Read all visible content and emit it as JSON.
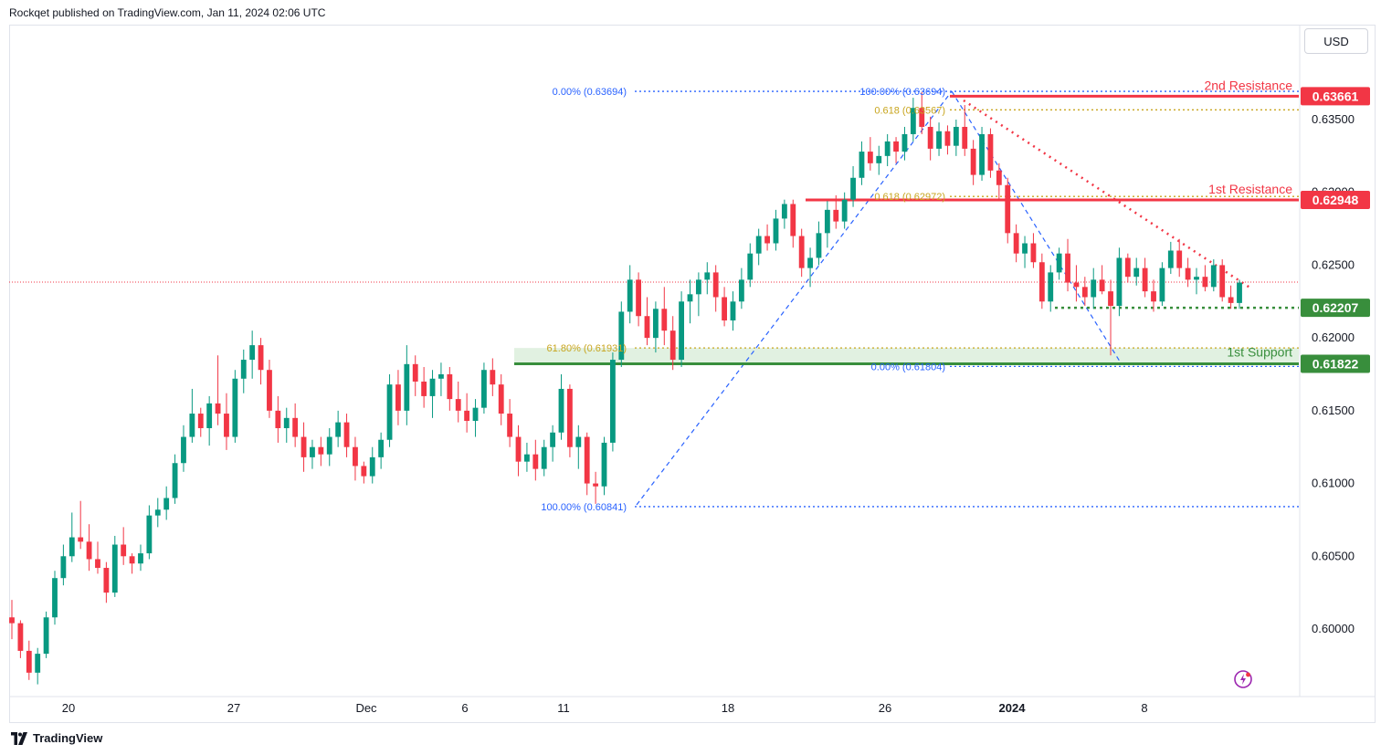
{
  "header": {
    "publisher": "Rockqet published on TradingView.com, Jan 11, 2024 02:06 UTC"
  },
  "toolbar": {
    "currency_label": "USD"
  },
  "footer": {
    "brand": "TradingView"
  },
  "colors": {
    "up": "#089981",
    "down": "#f23645",
    "resistance": "#f23645",
    "support": "#388e3c",
    "fib_blue": "#2962ff",
    "fib_gold": "#c8a51e"
  },
  "chart_data": {
    "type": "candlestick",
    "x_tick_labels": [
      "20",
      "27",
      "Dec",
      "6",
      "11",
      "18",
      "26",
      "2024",
      "8"
    ],
    "y_ticks": [
      "0.63500",
      "0.63000",
      "0.62500",
      "0.62000",
      "0.61500",
      "0.61000",
      "0.60500",
      "0.60000"
    ],
    "ylim": [
      0.5955,
      0.6425
    ],
    "price_labels": [
      {
        "value": 0.63661,
        "text": "0.63661",
        "kind": "resistance"
      },
      {
        "value": 0.62948,
        "text": "0.62948",
        "kind": "resistance"
      },
      {
        "value": 0.62207,
        "text": "0.62207",
        "kind": "support"
      },
      {
        "value": 0.61822,
        "text": "0.61822",
        "kind": "support"
      }
    ],
    "level_names": {
      "r2": "2nd Resistance",
      "r1": "1st Resistance",
      "s1": "1st Support"
    },
    "fib_labels": [
      {
        "text": "0.00% (0.63694)",
        "value": 0.63694
      },
      {
        "text": "100.00% (0.60841)",
        "value": 0.60841
      },
      {
        "text": "61.80% (0.61931)",
        "value": 0.61931
      },
      {
        "text": "100.00% (0.63694)",
        "value": 0.63694
      },
      {
        "text": "0.618 (0.63567)",
        "value": 0.63567
      },
      {
        "text": "0.618 (0.62972)",
        "value": 0.62972
      },
      {
        "text": "0.00% (0.61804)",
        "value": 0.61804
      }
    ],
    "candles": [
      [
        0.6008,
        0.602,
        0.5993,
        0.6004
      ],
      [
        0.6004,
        0.6006,
        0.598,
        0.5985
      ],
      [
        0.5985,
        0.5992,
        0.5965,
        0.597
      ],
      [
        0.597,
        0.5987,
        0.5962,
        0.5983
      ],
      [
        0.5983,
        0.6012,
        0.598,
        0.6008
      ],
      [
        0.6008,
        0.604,
        0.6003,
        0.6035
      ],
      [
        0.6035,
        0.6058,
        0.603,
        0.605
      ],
      [
        0.605,
        0.608,
        0.6046,
        0.6063
      ],
      [
        0.6063,
        0.6088,
        0.6055,
        0.606
      ],
      [
        0.606,
        0.6072,
        0.604,
        0.6048
      ],
      [
        0.6048,
        0.606,
        0.6038,
        0.6042
      ],
      [
        0.6042,
        0.6046,
        0.6018,
        0.6025
      ],
      [
        0.6025,
        0.6064,
        0.6022,
        0.6058
      ],
      [
        0.6058,
        0.607,
        0.6044,
        0.605
      ],
      [
        0.605,
        0.6052,
        0.6038,
        0.6045
      ],
      [
        0.6045,
        0.6058,
        0.604,
        0.6052
      ],
      [
        0.6052,
        0.6085,
        0.6048,
        0.6078
      ],
      [
        0.6078,
        0.609,
        0.607,
        0.6082
      ],
      [
        0.6082,
        0.6098,
        0.6075,
        0.609
      ],
      [
        0.609,
        0.612,
        0.6086,
        0.6114
      ],
      [
        0.6114,
        0.614,
        0.6108,
        0.6132
      ],
      [
        0.6132,
        0.6165,
        0.6128,
        0.6148
      ],
      [
        0.6148,
        0.6152,
        0.6132,
        0.6138
      ],
      [
        0.6138,
        0.616,
        0.6126,
        0.6155
      ],
      [
        0.6155,
        0.6188,
        0.614,
        0.6148
      ],
      [
        0.6148,
        0.6162,
        0.6123,
        0.6132
      ],
      [
        0.6132,
        0.6178,
        0.6128,
        0.6172
      ],
      [
        0.6172,
        0.6192,
        0.6162,
        0.6185
      ],
      [
        0.6185,
        0.6205,
        0.6172,
        0.6195
      ],
      [
        0.6195,
        0.62,
        0.6168,
        0.6178
      ],
      [
        0.6178,
        0.6185,
        0.6145,
        0.615
      ],
      [
        0.615,
        0.616,
        0.6128,
        0.6138
      ],
      [
        0.6138,
        0.6152,
        0.6128,
        0.6145
      ],
      [
        0.6145,
        0.6155,
        0.6125,
        0.6132
      ],
      [
        0.6132,
        0.6142,
        0.6108,
        0.6118
      ],
      [
        0.6118,
        0.613,
        0.611,
        0.6125
      ],
      [
        0.6125,
        0.6132,
        0.6112,
        0.612
      ],
      [
        0.612,
        0.6138,
        0.6112,
        0.6132
      ],
      [
        0.6132,
        0.615,
        0.6125,
        0.6142
      ],
      [
        0.6142,
        0.6148,
        0.6118,
        0.6125
      ],
      [
        0.6125,
        0.6132,
        0.6102,
        0.6112
      ],
      [
        0.6112,
        0.6115,
        0.61,
        0.6105
      ],
      [
        0.6105,
        0.6125,
        0.61,
        0.6118
      ],
      [
        0.6118,
        0.6135,
        0.611,
        0.613
      ],
      [
        0.613,
        0.6175,
        0.6125,
        0.6168
      ],
      [
        0.6168,
        0.6178,
        0.614,
        0.615
      ],
      [
        0.615,
        0.6195,
        0.614,
        0.6182
      ],
      [
        0.6182,
        0.6188,
        0.616,
        0.617
      ],
      [
        0.617,
        0.618,
        0.6152,
        0.616
      ],
      [
        0.616,
        0.6178,
        0.6145,
        0.6172
      ],
      [
        0.6172,
        0.6183,
        0.616,
        0.6175
      ],
      [
        0.6175,
        0.618,
        0.615,
        0.6158
      ],
      [
        0.6158,
        0.617,
        0.6142,
        0.615
      ],
      [
        0.615,
        0.6162,
        0.6135,
        0.6143
      ],
      [
        0.6143,
        0.6158,
        0.6132,
        0.6152
      ],
      [
        0.6152,
        0.6183,
        0.6148,
        0.6178
      ],
      [
        0.6178,
        0.6186,
        0.616,
        0.6168
      ],
      [
        0.6168,
        0.6175,
        0.614,
        0.6148
      ],
      [
        0.6148,
        0.6158,
        0.6125,
        0.6132
      ],
      [
        0.6132,
        0.614,
        0.6105,
        0.6115
      ],
      [
        0.6115,
        0.6128,
        0.6108,
        0.612
      ],
      [
        0.612,
        0.613,
        0.6102,
        0.611
      ],
      [
        0.611,
        0.613,
        0.6105,
        0.6125
      ],
      [
        0.6125,
        0.614,
        0.6115,
        0.6135
      ],
      [
        0.6135,
        0.6175,
        0.613,
        0.6165
      ],
      [
        0.6165,
        0.6168,
        0.6118,
        0.6125
      ],
      [
        0.6125,
        0.614,
        0.611,
        0.6132
      ],
      [
        0.6132,
        0.6135,
        0.6092,
        0.61
      ],
      [
        0.61,
        0.6108,
        0.6086,
        0.6098
      ],
      [
        0.6098,
        0.6132,
        0.6092,
        0.6128
      ],
      [
        0.6128,
        0.619,
        0.6122,
        0.6185
      ],
      [
        0.6185,
        0.6225,
        0.618,
        0.6218
      ],
      [
        0.6218,
        0.625,
        0.621,
        0.624
      ],
      [
        0.624,
        0.6245,
        0.6208,
        0.6215
      ],
      [
        0.6215,
        0.6228,
        0.6195,
        0.62
      ],
      [
        0.62,
        0.6225,
        0.619,
        0.622
      ],
      [
        0.622,
        0.6235,
        0.6195,
        0.6205
      ],
      [
        0.6205,
        0.6215,
        0.6178,
        0.6185
      ],
      [
        0.6185,
        0.6232,
        0.618,
        0.6225
      ],
      [
        0.6225,
        0.624,
        0.621,
        0.623
      ],
      [
        0.623,
        0.6245,
        0.6215,
        0.624
      ],
      [
        0.624,
        0.6252,
        0.623,
        0.6245
      ],
      [
        0.6245,
        0.625,
        0.6218,
        0.6228
      ],
      [
        0.6228,
        0.6235,
        0.6208,
        0.6212
      ],
      [
        0.6212,
        0.6232,
        0.6205,
        0.6225
      ],
      [
        0.6225,
        0.6248,
        0.622,
        0.624
      ],
      [
        0.624,
        0.6265,
        0.6235,
        0.6258
      ],
      [
        0.6258,
        0.6275,
        0.625,
        0.627
      ],
      [
        0.627,
        0.6278,
        0.626,
        0.6265
      ],
      [
        0.6265,
        0.6288,
        0.626,
        0.6282
      ],
      [
        0.6282,
        0.6295,
        0.6275,
        0.6292
      ],
      [
        0.6292,
        0.6295,
        0.6262,
        0.627
      ],
      [
        0.627,
        0.6275,
        0.6242,
        0.6248
      ],
      [
        0.6248,
        0.6262,
        0.6235,
        0.6255
      ],
      [
        0.6255,
        0.628,
        0.625,
        0.6272
      ],
      [
        0.6272,
        0.6294,
        0.6262,
        0.6288
      ],
      [
        0.6288,
        0.6298,
        0.6275,
        0.628
      ],
      [
        0.628,
        0.63,
        0.6275,
        0.6295
      ],
      [
        0.6295,
        0.6318,
        0.629,
        0.631
      ],
      [
        0.631,
        0.6335,
        0.6305,
        0.6328
      ],
      [
        0.6328,
        0.6338,
        0.6315,
        0.632
      ],
      [
        0.632,
        0.6332,
        0.6312,
        0.6325
      ],
      [
        0.6325,
        0.634,
        0.6318,
        0.6335
      ],
      [
        0.6335,
        0.6338,
        0.632,
        0.6328
      ],
      [
        0.6328,
        0.6345,
        0.6322,
        0.634
      ],
      [
        0.634,
        0.6365,
        0.6335,
        0.6358
      ],
      [
        0.6358,
        0.6369,
        0.634,
        0.6345
      ],
      [
        0.6345,
        0.6352,
        0.6322,
        0.633
      ],
      [
        0.633,
        0.6348,
        0.6325,
        0.6342
      ],
      [
        0.6342,
        0.6346,
        0.6326,
        0.6332
      ],
      [
        0.6332,
        0.635,
        0.6325,
        0.6345
      ],
      [
        0.6345,
        0.636,
        0.6325,
        0.633
      ],
      [
        0.633,
        0.6336,
        0.6305,
        0.6312
      ],
      [
        0.6312,
        0.6345,
        0.6308,
        0.634
      ],
      [
        0.634,
        0.6344,
        0.631,
        0.6315
      ],
      [
        0.6315,
        0.632,
        0.6295,
        0.6305
      ],
      [
        0.6305,
        0.631,
        0.6265,
        0.6272
      ],
      [
        0.6272,
        0.6278,
        0.6252,
        0.6258
      ],
      [
        0.6258,
        0.627,
        0.6248,
        0.6265
      ],
      [
        0.6265,
        0.6272,
        0.6248,
        0.6252
      ],
      [
        0.6252,
        0.6258,
        0.622,
        0.6225
      ],
      [
        0.6225,
        0.625,
        0.6218,
        0.6245
      ],
      [
        0.6245,
        0.6262,
        0.624,
        0.6258
      ],
      [
        0.6258,
        0.6268,
        0.6232,
        0.6238
      ],
      [
        0.6238,
        0.625,
        0.6225,
        0.6235
      ],
      [
        0.6235,
        0.6242,
        0.6222,
        0.6228
      ],
      [
        0.6228,
        0.6248,
        0.622,
        0.624
      ],
      [
        0.624,
        0.625,
        0.623,
        0.6232
      ],
      [
        0.6232,
        0.624,
        0.6188,
        0.6222
      ],
      [
        0.6222,
        0.6262,
        0.6215,
        0.6255
      ],
      [
        0.6255,
        0.6258,
        0.6238,
        0.6242
      ],
      [
        0.6242,
        0.6255,
        0.6236,
        0.6248
      ],
      [
        0.6248,
        0.6255,
        0.6228,
        0.6232
      ],
      [
        0.6232,
        0.624,
        0.6218,
        0.6225
      ],
      [
        0.6225,
        0.6252,
        0.6222,
        0.6248
      ],
      [
        0.6248,
        0.6266,
        0.6244,
        0.626
      ],
      [
        0.626,
        0.6268,
        0.6242,
        0.6248
      ],
      [
        0.6248,
        0.6255,
        0.6235,
        0.624
      ],
      [
        0.624,
        0.6248,
        0.623,
        0.6242
      ],
      [
        0.6242,
        0.625,
        0.6232,
        0.6235
      ],
      [
        0.6235,
        0.6254,
        0.6232,
        0.625
      ],
      [
        0.625,
        0.6254,
        0.6225,
        0.6228
      ],
      [
        0.6228,
        0.6236,
        0.622,
        0.6224
      ],
      [
        0.6224,
        0.624,
        0.622,
        0.6238
      ]
    ]
  }
}
